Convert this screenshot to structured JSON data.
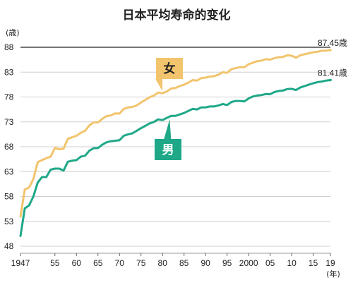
{
  "chart_data": {
    "type": "line",
    "title": "日本平均寿命的变化",
    "y_unit": "(歳)",
    "x_unit": "(年)",
    "ylim": [
      48,
      88
    ],
    "y_ticks": [
      "48",
      "53",
      "58",
      "63",
      "68",
      "73",
      "78",
      "83",
      "88"
    ],
    "x_ticks": [
      {
        "year": 1947,
        "label": "1947"
      },
      {
        "year": 1955,
        "label": "55"
      },
      {
        "year": 1960,
        "label": "60"
      },
      {
        "year": 1965,
        "label": "65"
      },
      {
        "year": 1970,
        "label": "70"
      },
      {
        "year": 1975,
        "label": "75"
      },
      {
        "year": 1980,
        "label": "80"
      },
      {
        "year": 1985,
        "label": "85"
      },
      {
        "year": 1990,
        "label": "90"
      },
      {
        "year": 1995,
        "label": "95"
      },
      {
        "year": 2000,
        "label": "2000"
      },
      {
        "year": 2005,
        "label": "05"
      },
      {
        "year": 2010,
        "label": "10"
      },
      {
        "year": 2015,
        "label": "15"
      },
      {
        "year": 2019,
        "label": "19"
      }
    ],
    "grid": "horizontal",
    "x": [
      1947,
      1948,
      1949,
      1950,
      1951,
      1952,
      1953,
      1954,
      1955,
      1956,
      1957,
      1958,
      1959,
      1960,
      1961,
      1962,
      1963,
      1964,
      1965,
      1966,
      1967,
      1968,
      1969,
      1970,
      1971,
      1972,
      1973,
      1974,
      1975,
      1976,
      1977,
      1978,
      1979,
      1980,
      1981,
      1982,
      1983,
      1984,
      1985,
      1986,
      1987,
      1988,
      1989,
      1990,
      1991,
      1992,
      1993,
      1994,
      1995,
      1996,
      1997,
      1998,
      1999,
      2000,
      2001,
      2002,
      2003,
      2004,
      2005,
      2006,
      2007,
      2008,
      2009,
      2010,
      2011,
      2012,
      2013,
      2014,
      2015,
      2016,
      2017,
      2018,
      2019
    ],
    "series": [
      {
        "name": "女",
        "color": "#f2c46d",
        "end_label": "87.45歳",
        "values": [
          53.96,
          59.4,
          59.8,
          61.5,
          64.9,
          65.3,
          65.7,
          66.0,
          67.75,
          67.5,
          67.6,
          69.6,
          69.9,
          70.2,
          70.8,
          71.2,
          72.3,
          72.9,
          72.9,
          73.6,
          74.15,
          74.3,
          74.7,
          74.66,
          75.6,
          75.9,
          76.0,
          76.3,
          76.9,
          77.4,
          77.95,
          78.3,
          78.9,
          78.76,
          79.1,
          79.7,
          79.8,
          80.2,
          80.48,
          80.9,
          81.4,
          81.3,
          81.8,
          81.9,
          82.1,
          82.2,
          82.5,
          82.98,
          82.85,
          83.6,
          83.8,
          84.0,
          83.99,
          84.6,
          84.9,
          85.2,
          85.3,
          85.6,
          85.52,
          85.8,
          86.0,
          86.05,
          86.4,
          86.3,
          85.9,
          86.4,
          86.6,
          86.8,
          87.0,
          87.1,
          87.3,
          87.3,
          87.45
        ]
      },
      {
        "name": "男",
        "color": "#1fa888",
        "end_label": "81.41歳",
        "values": [
          50.06,
          55.6,
          56.2,
          58.0,
          60.8,
          61.9,
          61.9,
          63.4,
          63.6,
          63.6,
          63.2,
          64.98,
          65.2,
          65.3,
          66.0,
          66.2,
          67.2,
          67.7,
          67.74,
          68.4,
          68.9,
          69.1,
          69.2,
          69.31,
          70.2,
          70.5,
          70.7,
          71.2,
          71.73,
          72.2,
          72.7,
          73.0,
          73.5,
          73.35,
          73.8,
          74.2,
          74.2,
          74.5,
          74.78,
          75.2,
          75.6,
          75.5,
          75.9,
          75.92,
          76.1,
          76.1,
          76.3,
          76.6,
          76.38,
          77.0,
          77.2,
          77.2,
          77.1,
          77.72,
          78.1,
          78.3,
          78.4,
          78.6,
          78.56,
          79.0,
          79.2,
          79.3,
          79.6,
          79.64,
          79.4,
          79.9,
          80.2,
          80.5,
          80.75,
          81.0,
          81.1,
          81.3,
          81.41
        ]
      }
    ]
  }
}
